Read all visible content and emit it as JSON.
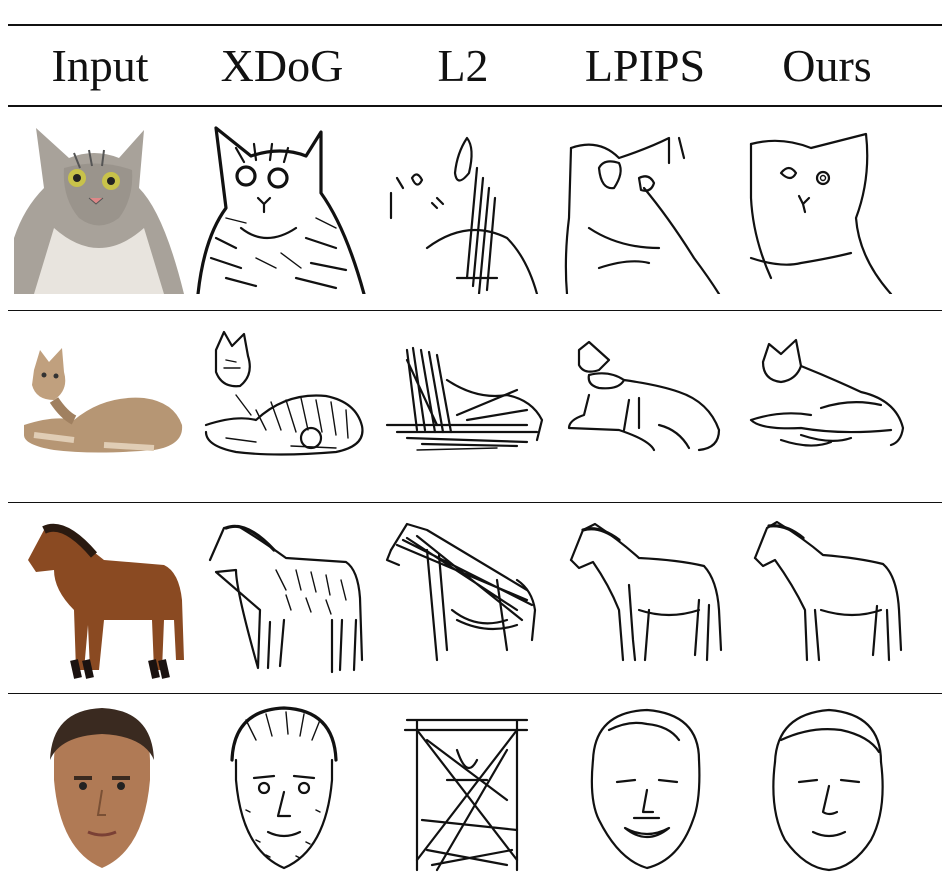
{
  "table": {
    "columns": [
      "Input",
      "XDoG",
      "L2",
      "LPIPS",
      "Ours"
    ],
    "rows": [
      {
        "subject": "cat-portrait"
      },
      {
        "subject": "cat-lying"
      },
      {
        "subject": "horse"
      },
      {
        "subject": "face"
      }
    ]
  },
  "colors": {
    "ink": "#111111",
    "cat_fur": "#a8a29a",
    "tabby": "#b69674",
    "horse_coat": "#8a4a22",
    "skin": "#b07a55",
    "hair": "#3a2a20"
  }
}
